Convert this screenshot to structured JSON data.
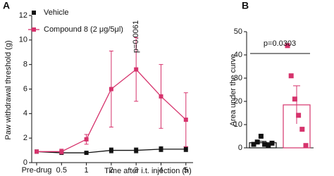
{
  "chart_data": [
    {
      "type": "line",
      "panel": "A",
      "ylabel": "Paw withdrawal threshold (g)",
      "xlabel": "Time after i.t. injection (h)",
      "categories": [
        "Pre-drug",
        "0.5",
        "1",
        "2",
        "3",
        "4",
        "5"
      ],
      "series": [
        {
          "name": "Vehicle",
          "color": "#111111",
          "values": [
            0.9,
            0.8,
            0.8,
            1.0,
            1.0,
            1.1,
            1.1
          ],
          "errors": [
            0.1,
            0.1,
            0.1,
            0.2,
            0.2,
            0.2,
            0.2
          ]
        },
        {
          "name": "Compound 8 (2 μg/5μl)",
          "color": "#d6336c",
          "values": [
            0.9,
            0.9,
            1.9,
            6.0,
            7.6,
            5.4,
            3.5
          ],
          "errors": [
            0.1,
            0.2,
            0.4,
            3.1,
            2.6,
            2.6,
            2.2
          ]
        }
      ],
      "annotation": {
        "text": "p=0.0061",
        "category": 4
      },
      "ylim": [
        0,
        12
      ],
      "yticks": [
        0,
        2,
        4,
        6,
        8,
        10,
        12
      ]
    },
    {
      "type": "bar",
      "panel": "B",
      "ylabel": "Area under the curve",
      "categories": [
        null,
        null
      ],
      "series": [
        {
          "color": "#111111",
          "value": 2.2,
          "error": 0.6,
          "points": [
            1.5,
            2.5,
            5,
            1.5,
            1,
            2
          ]
        },
        {
          "color": "#d6336c",
          "value": 18.5,
          "error": 8.2,
          "points": [
            44,
            31,
            21,
            14,
            8,
            1
          ]
        }
      ],
      "annotation": "p=0.0303",
      "ylim": [
        0,
        50
      ],
      "yticks": [
        0,
        10,
        20,
        30,
        40,
        50
      ]
    }
  ]
}
